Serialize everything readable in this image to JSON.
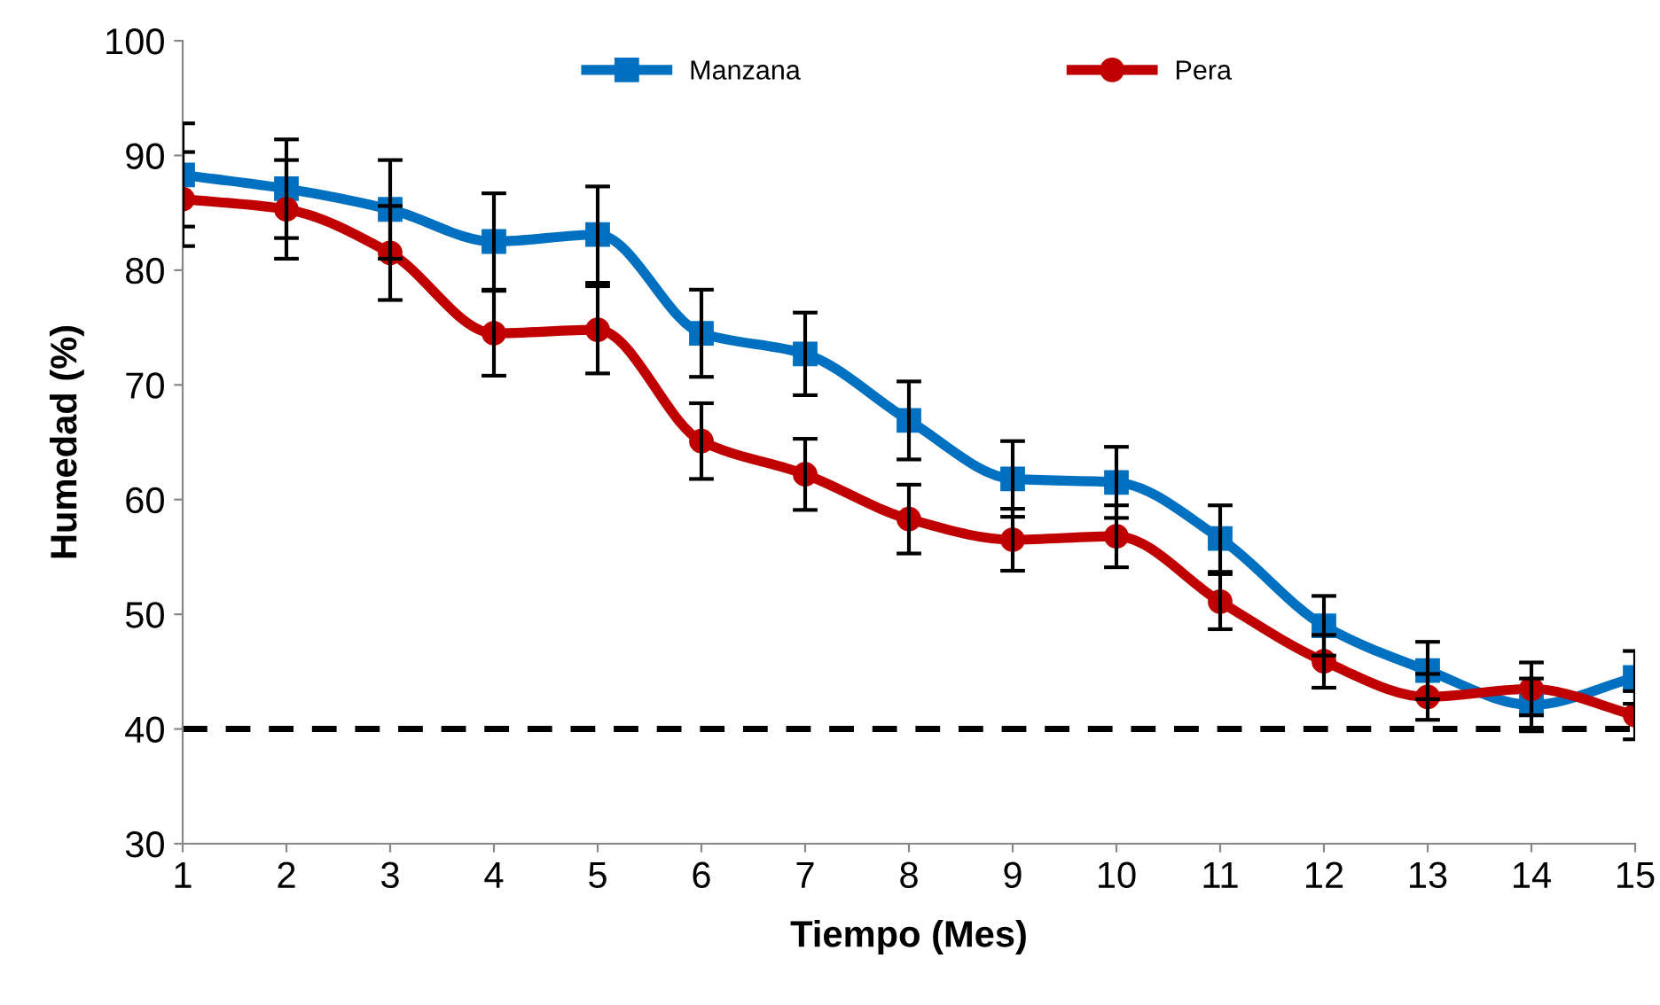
{
  "chart_data": {
    "type": "line",
    "xlabel": "Tiempo (Mes)",
    "ylabel": "Humedad (%)",
    "x": [
      1,
      2,
      3,
      4,
      5,
      6,
      7,
      8,
      9,
      10,
      11,
      12,
      13,
      14,
      15
    ],
    "series": [
      {
        "name": "Manzana",
        "color": "#0070c0",
        "marker": "square",
        "values": [
          88.3,
          87.1,
          85.3,
          82.5,
          83.1,
          74.5,
          72.7,
          66.9,
          61.8,
          61.5,
          56.6,
          49.0,
          45.1,
          42.1,
          44.5
        ],
        "errors": [
          4.5,
          4.3,
          4.3,
          4.2,
          4.2,
          3.8,
          3.6,
          3.4,
          3.3,
          3.1,
          2.9,
          2.6,
          2.5,
          2.3,
          2.3
        ]
      },
      {
        "name": "Pera",
        "color": "#c00000",
        "marker": "circle",
        "values": [
          86.2,
          85.3,
          81.5,
          74.5,
          74.8,
          65.1,
          62.2,
          58.3,
          56.5,
          56.8,
          51.1,
          45.9,
          42.8,
          43.5,
          41.2
        ],
        "errors": [
          4.1,
          4.3,
          4.1,
          3.7,
          3.8,
          3.3,
          3.1,
          3.0,
          2.7,
          2.7,
          2.4,
          2.3,
          2.0,
          2.3,
          2.1
        ]
      }
    ],
    "xlim": [
      1,
      15
    ],
    "xticks": [
      1,
      2,
      3,
      4,
      5,
      6,
      7,
      8,
      9,
      10,
      11,
      12,
      13,
      14,
      15
    ],
    "ylim": [
      30,
      100
    ],
    "yticks": [
      30,
      40,
      50,
      60,
      70,
      80,
      90,
      100
    ],
    "ref_lines": [
      {
        "axis": "y",
        "value": 40,
        "color": "#000000",
        "line_style": "dashed"
      }
    ],
    "grid": false,
    "legend": "top",
    "line_style": "solid"
  }
}
